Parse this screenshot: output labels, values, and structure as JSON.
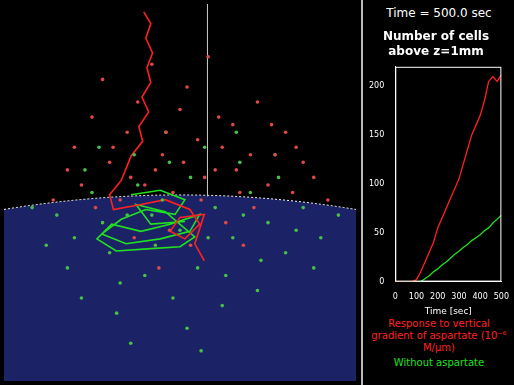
{
  "chart_data": [
    {
      "type": "scatter",
      "xlim": [
        0,
        100
      ],
      "ylim": [
        0,
        100
      ],
      "tick_labels": false,
      "grid": false,
      "series": [
        {
          "color": "#e04848",
          "marker": "circle",
          "values": [
            [
              20,
              62
            ],
            [
              25,
              70
            ],
            [
              30,
              58
            ],
            [
              35,
              66
            ],
            [
              40,
              52
            ],
            [
              45,
              60
            ],
            [
              50,
              72
            ],
            [
              55,
              64
            ],
            [
              60,
              56
            ],
            [
              65,
              68
            ],
            [
              70,
              60
            ],
            [
              75,
              52
            ],
            [
              80,
              66
            ],
            [
              85,
              58
            ],
            [
              22,
              52
            ],
            [
              28,
              80
            ],
            [
              33,
              48
            ],
            [
              38,
              74
            ],
            [
              43,
              56
            ],
            [
              48,
              50
            ],
            [
              52,
              78
            ],
            [
              57,
              54
            ],
            [
              62,
              62
            ],
            [
              67,
              50
            ],
            [
              72,
              74
            ],
            [
              77,
              60
            ],
            [
              82,
              50
            ],
            [
              18,
              56
            ],
            [
              26,
              46
            ],
            [
              31,
              62
            ],
            [
              36,
              54
            ],
            [
              46,
              66
            ],
            [
              51,
              58
            ],
            [
              56,
              48
            ],
            [
              61,
              70
            ],
            [
              66,
              56
            ],
            [
              71,
              46
            ],
            [
              76,
              68
            ],
            [
              83,
              62
            ],
            [
              88,
              54
            ],
            [
              42,
              84
            ],
            [
              58,
              86
            ],
            [
              47,
              40
            ],
            [
              53,
              36
            ],
            [
              63,
              42
            ],
            [
              37,
              38
            ],
            [
              68,
              36
            ],
            [
              14,
              48
            ],
            [
              92,
              48
            ],
            [
              44,
              30
            ]
          ]
        },
        {
          "color": "#48c048",
          "marker": "circle",
          "values": [
            [
              15,
              44
            ],
            [
              20,
              38
            ],
            [
              25,
              50
            ],
            [
              30,
              34
            ],
            [
              35,
              44
            ],
            [
              40,
              28
            ],
            [
              45,
              48
            ],
            [
              50,
              40
            ],
            [
              55,
              30
            ],
            [
              60,
              46
            ],
            [
              65,
              38
            ],
            [
              70,
              50
            ],
            [
              75,
              42
            ],
            [
              80,
              34
            ],
            [
              85,
              46
            ],
            [
              18,
              30
            ],
            [
              23,
              56
            ],
            [
              28,
              42
            ],
            [
              33,
              26
            ],
            [
              38,
              52
            ],
            [
              43,
              36
            ],
            [
              48,
              22
            ],
            [
              53,
              54
            ],
            [
              58,
              38
            ],
            [
              63,
              28
            ],
            [
              68,
              44
            ],
            [
              73,
              32
            ],
            [
              78,
              54
            ],
            [
              83,
              40
            ],
            [
              88,
              30
            ],
            [
              12,
              36
            ],
            [
              27,
              62
            ],
            [
              37,
              60
            ],
            [
              47,
              58
            ],
            [
              57,
              62
            ],
            [
              67,
              58
            ],
            [
              77,
              60
            ],
            [
              32,
              18
            ],
            [
              52,
              14
            ],
            [
              62,
              20
            ],
            [
              42,
              44
            ],
            [
              72,
              24
            ],
            [
              22,
              22
            ],
            [
              90,
              38
            ],
            [
              8,
              46
            ],
            [
              95,
              44
            ],
            [
              46,
              66
            ],
            [
              66,
              66
            ],
            [
              56,
              8
            ],
            [
              36,
              10
            ]
          ]
        },
        {
          "type": "line",
          "color": "#ff2020",
          "values": [
            [
              39.7,
              97.9
            ],
            [
              41.7,
              94.8
            ],
            [
              40.3,
              90.9
            ],
            [
              42.2,
              87.0
            ],
            [
              40.6,
              83.1
            ],
            [
              41.7,
              79.2
            ],
            [
              39.2,
              75.3
            ],
            [
              41.1,
              71.4
            ],
            [
              38.3,
              67.5
            ],
            [
              39.4,
              63.6
            ],
            [
              36.1,
              59.7
            ],
            [
              34.7,
              56.4
            ],
            [
              33.3,
              53.2
            ],
            [
              30.0,
              49.4
            ],
            [
              31.1,
              45.5
            ],
            [
              38.9,
              46.8
            ],
            [
              45.8,
              48.1
            ],
            [
              52.8,
              45.5
            ],
            [
              55.6,
              41.6
            ],
            [
              51.4,
              37.7
            ],
            [
              47.2,
              39.7
            ],
            [
              50.0,
              43.4
            ],
            [
              56.9,
              44.2
            ],
            [
              54.2,
              36.4
            ],
            [
              56.9,
              31.9
            ]
          ]
        },
        {
          "type": "line",
          "color": "#20e020",
          "values": [
            [
              36.1,
              49.4
            ],
            [
              44.4,
              50.6
            ],
            [
              51.4,
              48.1
            ],
            [
              48.6,
              44.2
            ],
            [
              40.3,
              45.5
            ],
            [
              33.3,
              42.9
            ],
            [
              27.8,
              39.0
            ],
            [
              34.7,
              36.4
            ],
            [
              44.4,
              37.7
            ],
            [
              52.8,
              39.7
            ],
            [
              55.6,
              44.2
            ],
            [
              47.2,
              41.6
            ],
            [
              38.9,
              39.7
            ],
            [
              30.6,
              41.6
            ],
            [
              26.4,
              37.7
            ],
            [
              31.9,
              34.5
            ],
            [
              41.7,
              35.1
            ],
            [
              50.0,
              35.6
            ],
            [
              54.2,
              38.2
            ],
            [
              45.8,
              44.9
            ],
            [
              37.5,
              46.8
            ],
            [
              41.7,
              41.6
            ],
            [
              51.4,
              42.3
            ]
          ]
        }
      ]
    },
    {
      "type": "line",
      "annotations": [
        "Time = 500.0 sec"
      ],
      "title": [
        "Number of cells",
        "above z=1mm"
      ],
      "xlabel": "Time [sec]",
      "x": [
        0,
        20,
        40,
        60,
        80,
        100,
        120,
        140,
        160,
        180,
        200,
        220,
        240,
        260,
        280,
        300,
        320,
        340,
        360,
        380,
        400,
        420,
        440,
        460,
        480,
        500
      ],
      "series": [
        {
          "name": "Response to vertical gradient of aspartate (10⁻⁶ M/μm)",
          "color": "#ff2020",
          "values": [
            0,
            0,
            0,
            0,
            0,
            2,
            10,
            20,
            30,
            40,
            55,
            65,
            75,
            85,
            95,
            105,
            120,
            135,
            150,
            160,
            170,
            185,
            205,
            210,
            205,
            212
          ]
        },
        {
          "name": "Without aspartate",
          "color": "#20e020",
          "values": [
            0,
            0,
            0,
            0,
            0,
            0,
            0,
            3,
            6,
            10,
            13,
            17,
            20,
            24,
            28,
            31,
            35,
            38,
            42,
            45,
            48,
            52,
            55,
            60,
            64,
            68
          ]
        }
      ],
      "xlim": [
        0,
        500
      ],
      "ylim": [
        0,
        220
      ],
      "xticks": [
        0,
        100,
        200,
        300,
        400,
        500
      ],
      "yticks": [
        0,
        50,
        100,
        150,
        200
      ],
      "grid": false,
      "legend": "bottom"
    }
  ]
}
